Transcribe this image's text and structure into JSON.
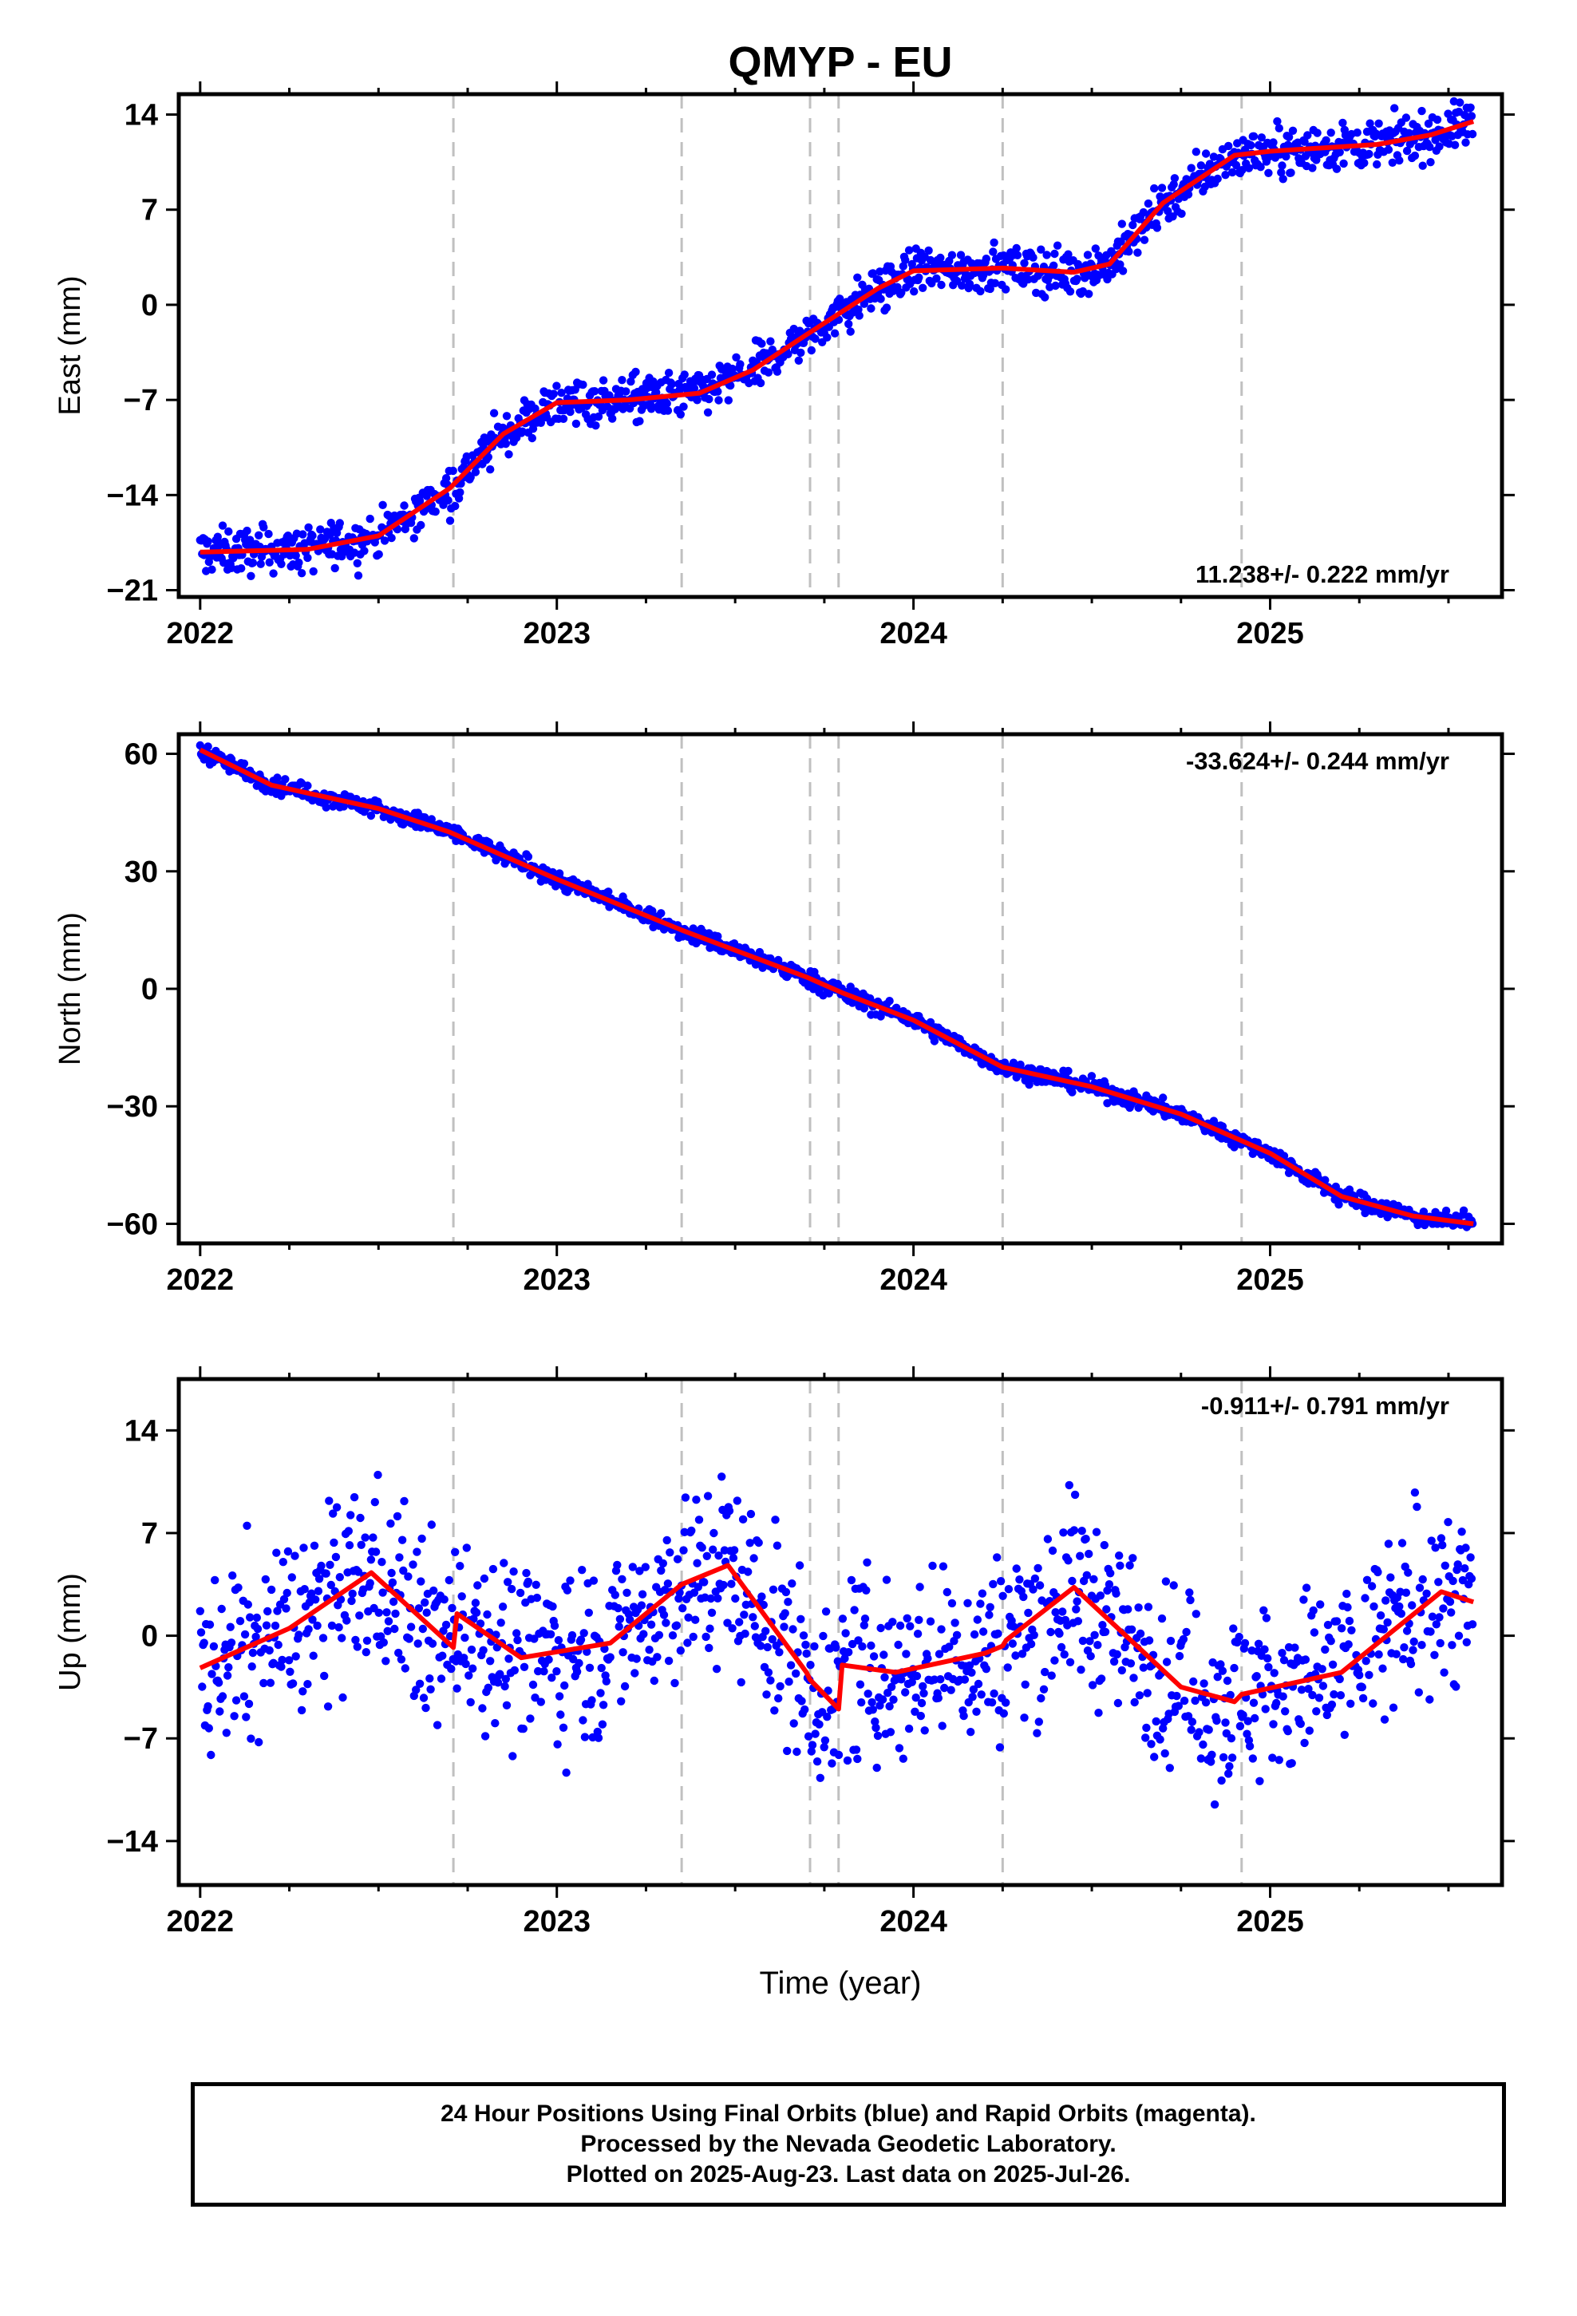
{
  "chart_data": [
    {
      "type": "scatter",
      "title": "QMYP - EU",
      "ylabel": "East (mm)",
      "xlabel": "",
      "xlim": [
        2021.94,
        2025.65
      ],
      "ylim": [
        -21.5,
        15.5
      ],
      "xticks": [
        "2022",
        "2023",
        "2024",
        "2025"
      ],
      "yticks": [
        "14",
        "7",
        "0",
        "−7",
        "−14",
        "−21"
      ],
      "rate_label": "11.238+/- 0.222 mm/yr",
      "rate_position": "bottom-right",
      "grid": false,
      "breaks": [
        2022.71,
        2023.35,
        2023.71,
        2023.79,
        2024.25,
        2024.92
      ],
      "series": [
        {
          "values_from": "model",
          "points": [
            [
              2022.0,
              -18.2
            ],
            [
              2022.3,
              -18.0
            ],
            [
              2022.5,
              -17.0
            ],
            [
              2022.7,
              -13.5
            ],
            [
              2022.85,
              -9.5
            ],
            [
              2023.0,
              -7.2
            ],
            [
              2023.2,
              -7.0
            ],
            [
              2023.4,
              -6.5
            ],
            [
              2023.55,
              -4.8
            ],
            [
              2023.7,
              -2.2
            ],
            [
              2023.9,
              1.2
            ],
            [
              2024.0,
              2.5
            ],
            [
              2024.25,
              2.7
            ],
            [
              2024.45,
              2.4
            ],
            [
              2024.55,
              3.0
            ],
            [
              2024.7,
              7.5
            ],
            [
              2024.9,
              11.0
            ],
            [
              2025.0,
              11.3
            ],
            [
              2025.3,
              11.8
            ],
            [
              2025.45,
              12.5
            ],
            [
              2025.57,
              13.5
            ]
          ],
          "scatter": 1.2
        },
        {
          "name": "model",
          "points": [
            [
              2022.0,
              -18.2
            ],
            [
              2022.3,
              -18.0
            ],
            [
              2022.5,
              -17.0
            ],
            [
              2022.7,
              -13.5
            ],
            [
              2022.85,
              -9.5
            ],
            [
              2023.0,
              -7.2
            ],
            [
              2023.2,
              -7.0
            ],
            [
              2023.4,
              -6.5
            ],
            [
              2023.55,
              -4.8
            ],
            [
              2023.7,
              -2.2
            ],
            [
              2023.9,
              1.2
            ],
            [
              2024.0,
              2.5
            ],
            [
              2024.25,
              2.7
            ],
            [
              2024.45,
              2.4
            ],
            [
              2024.55,
              3.0
            ],
            [
              2024.7,
              7.5
            ],
            [
              2024.9,
              11.0
            ],
            [
              2025.0,
              11.3
            ],
            [
              2025.3,
              11.8
            ],
            [
              2025.45,
              12.5
            ],
            [
              2025.57,
              13.5
            ]
          ]
        }
      ]
    },
    {
      "type": "scatter",
      "title": "",
      "ylabel": "North (mm)",
      "xlabel": "",
      "xlim": [
        2021.94,
        2025.65
      ],
      "ylim": [
        -65,
        65
      ],
      "xticks": [
        "2022",
        "2023",
        "2024",
        "2025"
      ],
      "yticks": [
        "60",
        "30",
        "0",
        "−30",
        "−60"
      ],
      "rate_label": "-33.624+/- 0.244 mm/yr",
      "rate_position": "top-right",
      "grid": false,
      "breaks": [
        2022.71,
        2023.35,
        2023.71,
        2023.79,
        2024.25,
        2024.92
      ],
      "series": [
        {
          "values_from": "model",
          "points": [
            [
              2022.0,
              61.0
            ],
            [
              2022.2,
              52.0
            ],
            [
              2022.5,
              46.0
            ],
            [
              2022.7,
              40.0
            ],
            [
              2023.0,
              28.0
            ],
            [
              2023.35,
              15.0
            ],
            [
              2023.7,
              3.0
            ],
            [
              2023.8,
              -1.0
            ],
            [
              2024.0,
              -8.0
            ],
            [
              2024.25,
              -20.0
            ],
            [
              2024.5,
              -25.0
            ],
            [
              2024.75,
              -32.0
            ],
            [
              2025.0,
              -42.0
            ],
            [
              2025.2,
              -53.0
            ],
            [
              2025.4,
              -58.0
            ],
            [
              2025.57,
              -60.0
            ]
          ],
          "scatter": 1.6
        },
        {
          "name": "model",
          "points": [
            [
              2022.0,
              61.0
            ],
            [
              2022.2,
              52.0
            ],
            [
              2022.5,
              46.0
            ],
            [
              2022.7,
              40.0
            ],
            [
              2023.0,
              28.0
            ],
            [
              2023.35,
              15.0
            ],
            [
              2023.7,
              3.0
            ],
            [
              2023.8,
              -1.0
            ],
            [
              2024.0,
              -8.0
            ],
            [
              2024.25,
              -20.0
            ],
            [
              2024.5,
              -25.0
            ],
            [
              2024.75,
              -32.0
            ],
            [
              2025.0,
              -42.0
            ],
            [
              2025.2,
              -53.0
            ],
            [
              2025.4,
              -58.0
            ],
            [
              2025.57,
              -60.0
            ]
          ]
        }
      ]
    },
    {
      "type": "scatter",
      "title": "",
      "ylabel": "Up (mm)",
      "xlabel": "Time (year)",
      "xlim": [
        2021.94,
        2025.65
      ],
      "ylim": [
        -17,
        17.5
      ],
      "xticks": [
        "2022",
        "2023",
        "2024",
        "2025"
      ],
      "yticks": [
        "14",
        "7",
        "0",
        "−7",
        "−14"
      ],
      "rate_label": "-0.911+/- 0.791 mm/yr",
      "rate_position": "top-right",
      "grid": false,
      "breaks": [
        2022.71,
        2023.35,
        2023.71,
        2023.79,
        2024.25,
        2024.92
      ],
      "series": [
        {
          "values_from": "model",
          "points": [
            [
              2022.0,
              -2.2
            ],
            [
              2022.25,
              0.5
            ],
            [
              2022.48,
              4.3
            ],
            [
              2022.71,
              -0.8
            ],
            [
              2022.72,
              1.5
            ],
            [
              2022.9,
              -1.5
            ],
            [
              2023.15,
              -0.5
            ],
            [
              2023.35,
              3.5
            ],
            [
              2023.48,
              4.8
            ],
            [
              2023.7,
              -2.5
            ],
            [
              2023.71,
              -3.0
            ],
            [
              2023.79,
              -5.0
            ],
            [
              2023.8,
              -2.0
            ],
            [
              2023.95,
              -2.5
            ],
            [
              2024.2,
              -1.2
            ],
            [
              2024.25,
              -0.7
            ],
            [
              2024.26,
              -0.3
            ],
            [
              2024.45,
              3.3
            ],
            [
              2024.75,
              -3.5
            ],
            [
              2024.9,
              -4.5
            ],
            [
              2024.92,
              -4.0
            ],
            [
              2025.2,
              -2.5
            ],
            [
              2025.48,
              3.0
            ],
            [
              2025.57,
              2.3
            ]
          ],
          "scatter": 4.5
        },
        {
          "name": "model",
          "points": [
            [
              2022.0,
              -2.2
            ],
            [
              2022.25,
              0.5
            ],
            [
              2022.48,
              4.3
            ],
            [
              2022.71,
              -0.8
            ],
            [
              2022.72,
              1.5
            ],
            [
              2022.9,
              -1.5
            ],
            [
              2023.15,
              -0.5
            ],
            [
              2023.35,
              3.5
            ],
            [
              2023.48,
              4.8
            ],
            [
              2023.7,
              -2.5
            ],
            [
              2023.71,
              -3.0
            ],
            [
              2023.79,
              -5.0
            ],
            [
              2023.8,
              -2.0
            ],
            [
              2023.95,
              -2.5
            ],
            [
              2024.2,
              -1.2
            ],
            [
              2024.25,
              -0.7
            ],
            [
              2024.26,
              -0.3
            ],
            [
              2024.45,
              3.3
            ],
            [
              2024.75,
              -3.5
            ],
            [
              2024.9,
              -4.5
            ],
            [
              2024.92,
              -4.0
            ],
            [
              2025.2,
              -2.5
            ],
            [
              2025.48,
              3.0
            ],
            [
              2025.57,
              2.3
            ]
          ]
        }
      ]
    }
  ],
  "footer": {
    "line1": "24 Hour Positions Using Final Orbits (blue) and Rapid Orbits (magenta).",
    "line2": "Processed by the Nevada Geodetic Laboratory.",
    "line3": "Plotted on 2025-Aug-23. Last data on 2025-Jul-26."
  },
  "colors": {
    "points": "#0000ff",
    "model": "#ff0000",
    "breaks": "#c0c0c0",
    "axes": "#000000"
  }
}
